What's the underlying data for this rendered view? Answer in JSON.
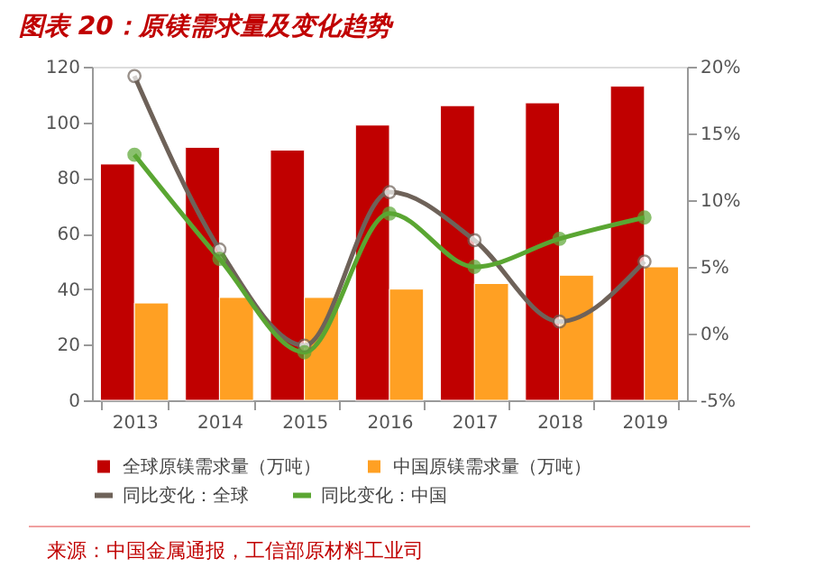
{
  "chart_data": {
    "type": "bar",
    "title": "图表 20：原镁需求量及变化趋势",
    "categories": [
      "2013",
      "2014",
      "2015",
      "2016",
      "2017",
      "2018",
      "2019"
    ],
    "series": [
      {
        "name": "全球原镁需求量（万吨）",
        "color": "#c00000",
        "values": [
          85,
          91,
          90,
          99,
          106,
          107,
          113
        ]
      },
      {
        "name": "中国原镁需求量（万吨）",
        "color": "#ffa023",
        "values": [
          35,
          37,
          37,
          40,
          42,
          45,
          48
        ]
      },
      {
        "name": "同比变化：全球",
        "type": "line",
        "axis": "y2",
        "color": "#6e6259",
        "marker": "circle",
        "values": [
          19.3,
          6.3,
          -0.9,
          10.6,
          7.0,
          0.9,
          5.4
        ]
      },
      {
        "name": "同比变化：中国",
        "type": "line",
        "axis": "y2",
        "color": "#5aa632",
        "marker": "circle",
        "values": [
          13.4,
          5.6,
          -1.4,
          9.0,
          5.0,
          7.1,
          8.7
        ]
      }
    ],
    "ylim": [
      0,
      120
    ],
    "yticks": [
      0,
      20,
      40,
      60,
      80,
      100,
      120
    ],
    "y2lim": [
      -5,
      20
    ],
    "y2ticks": [
      {
        "value": -5,
        "label": "-5%"
      },
      {
        "value": 0,
        "label": "0%"
      },
      {
        "value": 5,
        "label": "5%"
      },
      {
        "value": 10,
        "label": "10%"
      },
      {
        "value": 15,
        "label": "15%"
      },
      {
        "value": 20,
        "label": "20%"
      }
    ],
    "legend": "bottom",
    "grid": false,
    "annotations": [
      "来源：中国金属通报，工信部原材料工业司"
    ]
  }
}
